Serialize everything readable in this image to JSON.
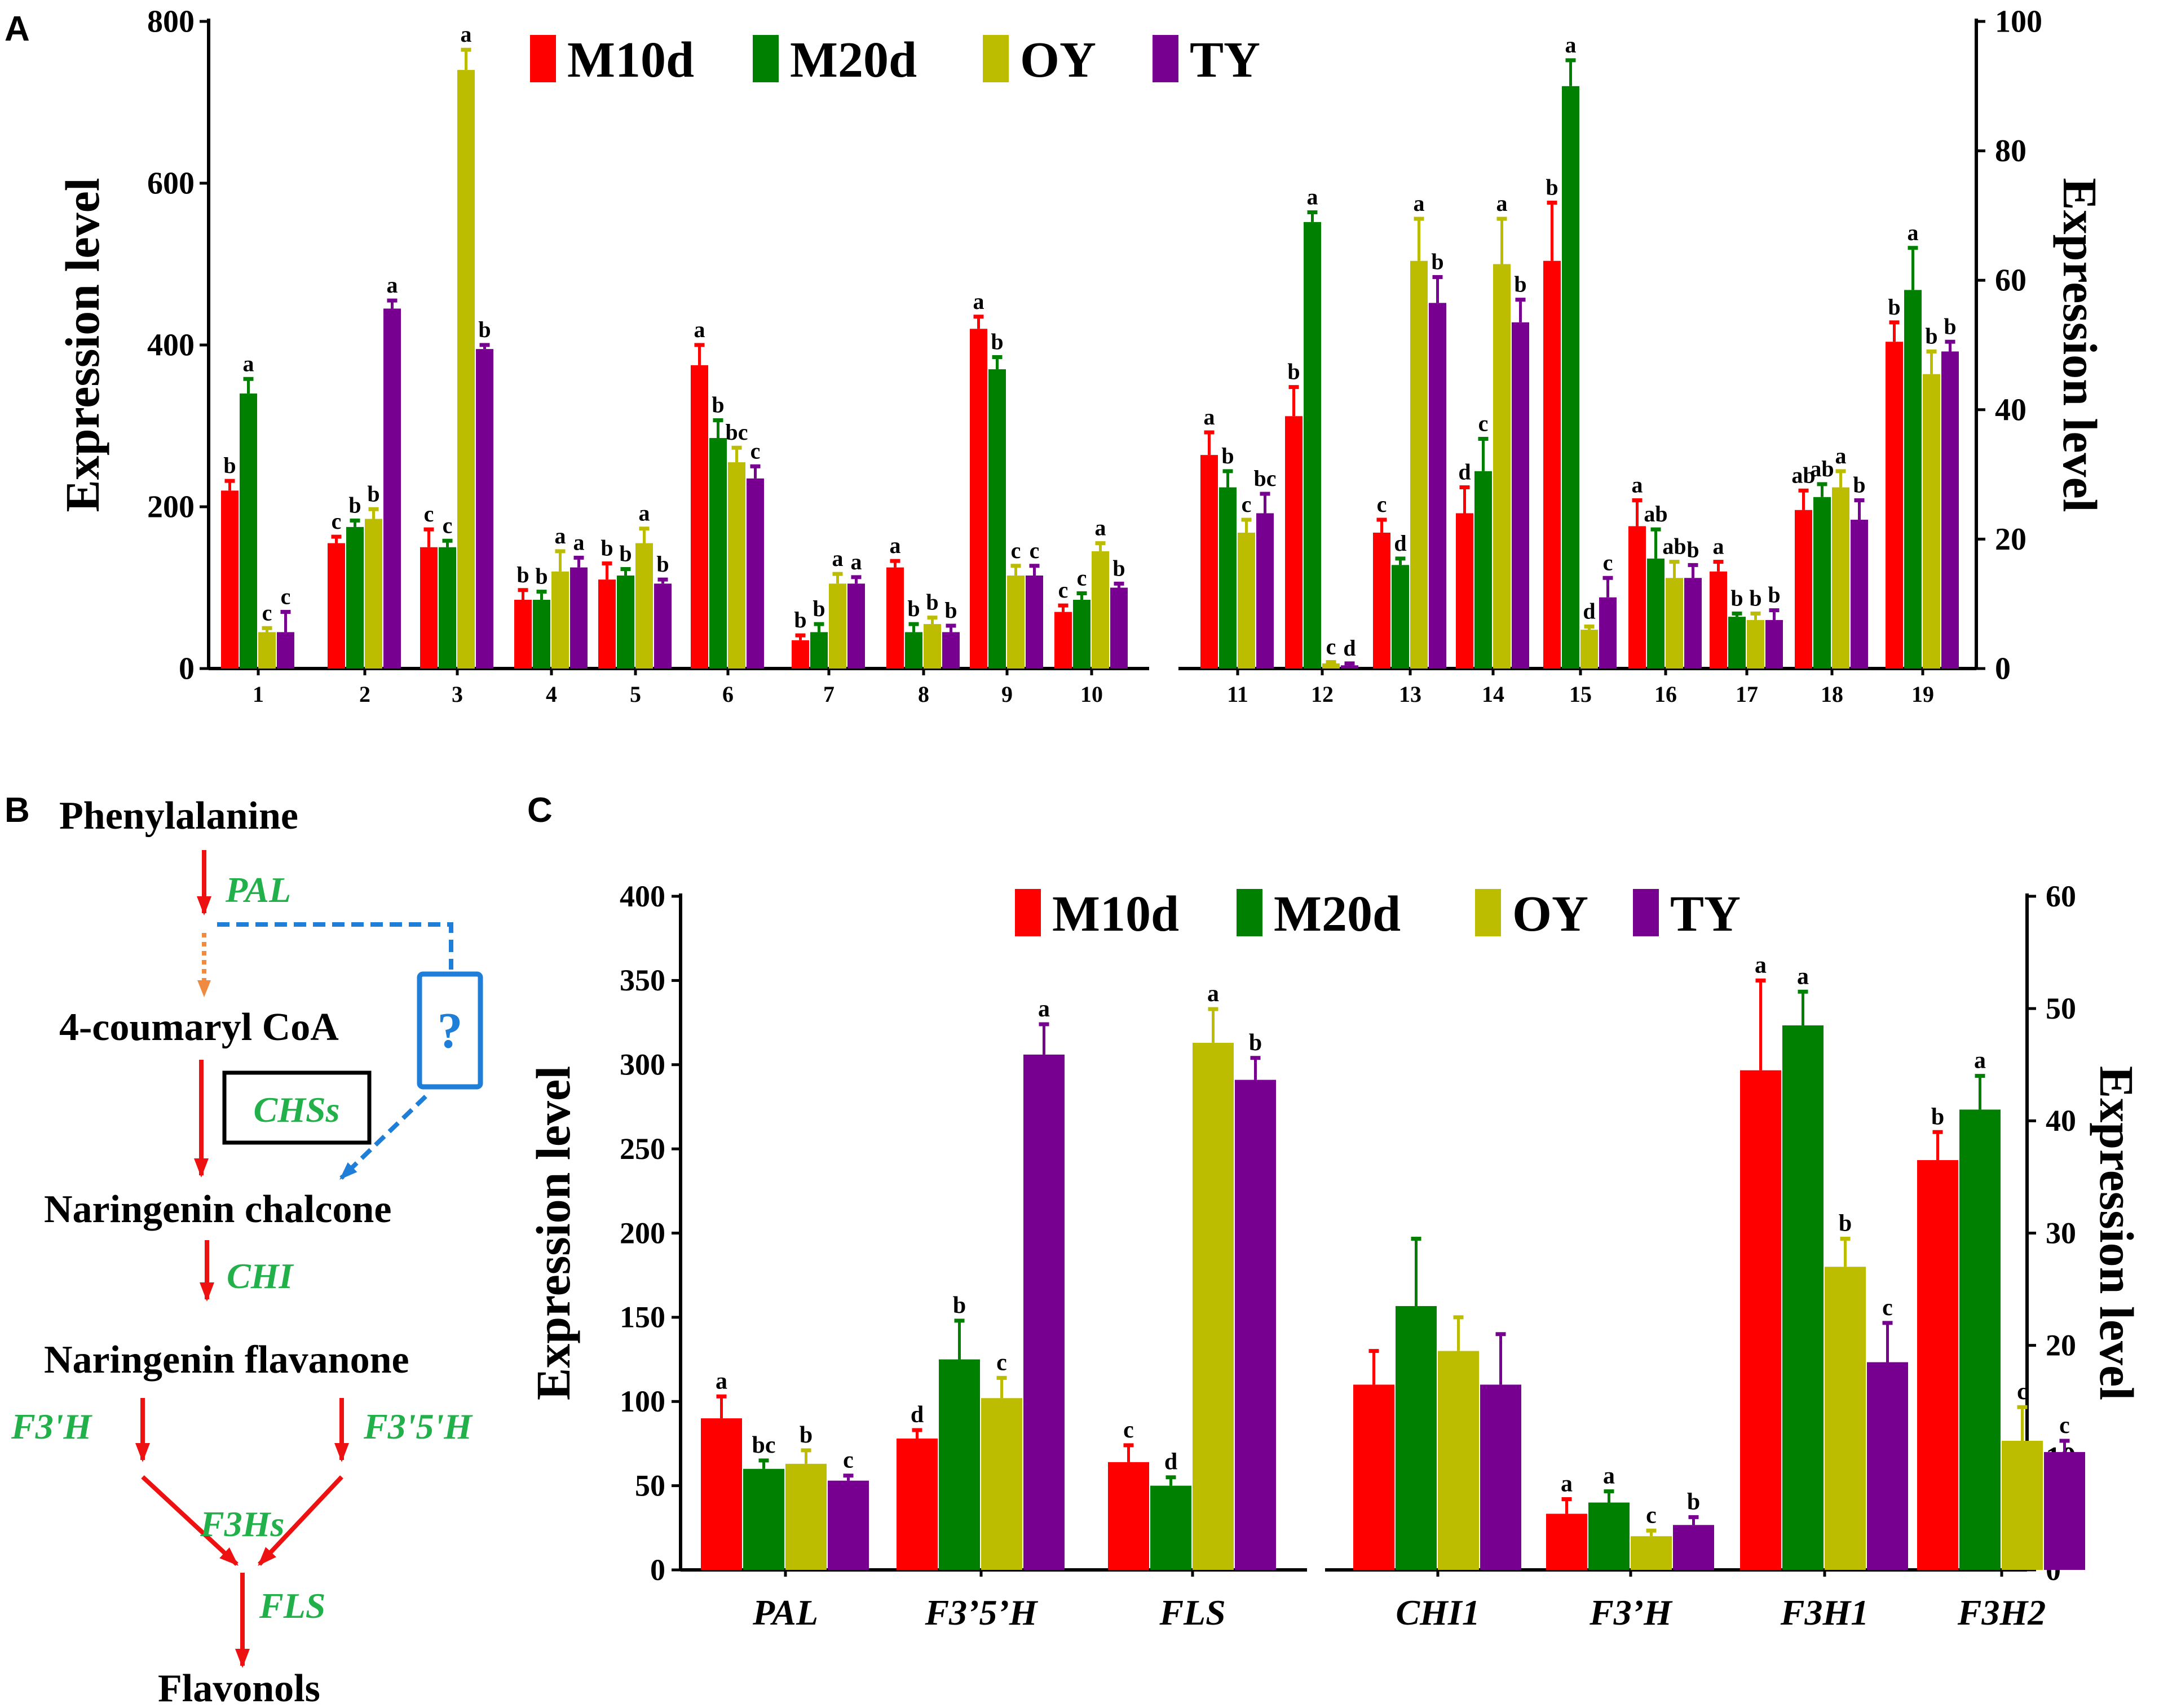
{
  "figure": {
    "panel_a_label": "A",
    "panel_b_label": "B",
    "panel_c_label": "C"
  },
  "colors": {
    "M10d": "#ff0000",
    "M20d": "#008000",
    "OY": "#bcbc00",
    "TY": "#780090",
    "pathway_arrow": "#ee1111",
    "pathway_dotted": "#f08a40",
    "pathway_blue": "#1e7ed8",
    "enzyme_text": "#22b04a"
  },
  "chart_data": [
    {
      "id": "A",
      "type": "bar",
      "title": "",
      "ylabel_left": "Expression level",
      "ylabel_right": "Expression level",
      "legend": [
        "M10d",
        "M20d",
        "OY",
        "TY"
      ],
      "left": {
        "ylim": [
          0,
          800
        ],
        "yticks": [
          "0",
          "200",
          "400",
          "600",
          "800"
        ],
        "categories": [
          "1",
          "2",
          "3",
          "4",
          "5",
          "6",
          "7",
          "8",
          "9",
          "10"
        ],
        "series": [
          {
            "name": "M10d",
            "values": [
              220,
              155,
              150,
              85,
              110,
              375,
              35,
              125,
              420,
              70
            ],
            "errors": [
              12,
              8,
              22,
              12,
              20,
              25,
              6,
              8,
              15,
              8
            ],
            "letters": [
              "b",
              "c",
              "c",
              "b",
              "b",
              "a",
              "b",
              "a",
              "a",
              "c"
            ]
          },
          {
            "name": "M20d",
            "values": [
              340,
              175,
              150,
              85,
              115,
              285,
              45,
              45,
              370,
              85
            ],
            "errors": [
              18,
              8,
              8,
              10,
              8,
              22,
              10,
              10,
              15,
              8
            ],
            "letters": [
              "a",
              "b",
              "c",
              "b",
              "b",
              "b",
              "b",
              "b",
              "b",
              "c"
            ]
          },
          {
            "name": "OY",
            "values": [
              45,
              185,
              740,
              120,
              155,
              255,
              105,
              55,
              115,
              145
            ],
            "errors": [
              5,
              12,
              25,
              25,
              18,
              18,
              12,
              8,
              12,
              10
            ],
            "letters": [
              "c",
              "b",
              "a",
              "a",
              "a",
              "bc",
              "a",
              "b",
              "c",
              "a"
            ]
          },
          {
            "name": "TY",
            "values": [
              45,
              445,
              395,
              125,
              105,
              235,
              105,
              45,
              115,
              100
            ],
            "errors": [
              25,
              10,
              5,
              12,
              5,
              15,
              8,
              8,
              12,
              5
            ],
            "letters": [
              "c",
              "a",
              "b",
              "a",
              "b",
              "c",
              "a",
              "b",
              "c",
              "b"
            ]
          }
        ]
      },
      "right": {
        "ylim": [
          0,
          100
        ],
        "yticks": [
          "0",
          "20",
          "40",
          "60",
          "80",
          "100"
        ],
        "categories": [
          "11",
          "12",
          "13",
          "14",
          "15",
          "16",
          "17",
          "18",
          "19"
        ],
        "series": [
          {
            "name": "M10d",
            "values": [
              33,
              39,
              21,
              24,
              63,
              22,
              15,
              24.5,
              50.5
            ],
            "errors": [
              3.5,
              4.5,
              2,
              4,
              9,
              4,
              1.5,
              3,
              3
            ],
            "letters": [
              "a",
              "b",
              "c",
              "d",
              "b",
              "a",
              "a",
              "ab",
              "b"
            ]
          },
          {
            "name": "M20d",
            "values": [
              28,
              69,
              16,
              30.5,
              90,
              17,
              8,
              26.5,
              58.5
            ],
            "errors": [
              2.5,
              1.5,
              1,
              5,
              4,
              4.5,
              0.5,
              2,
              6.5
            ],
            "letters": [
              "b",
              "a",
              "d",
              "c",
              "a",
              "ab",
              "b",
              "ab",
              "a"
            ]
          },
          {
            "name": "OY",
            "values": [
              21,
              0.8,
              63,
              62.5,
              6,
              14,
              7.5,
              28,
              45.5
            ],
            "errors": [
              2,
              0.2,
              6.5,
              7,
              0.5,
              2.5,
              1,
              2.5,
              3.5
            ],
            "letters": [
              "c",
              "c",
              "a",
              "a",
              "d",
              "ab",
              "b",
              "a",
              "b"
            ]
          },
          {
            "name": "TY",
            "values": [
              24,
              0.5,
              56.5,
              53.5,
              11,
              14,
              7.5,
              23,
              49
            ],
            "errors": [
              3,
              0.3,
              4,
              3.5,
              3,
              2,
              1.5,
              3,
              1.5
            ],
            "letters": [
              "bc",
              "d",
              "b",
              "b",
              "c",
              "b",
              "b",
              "b",
              "b"
            ]
          }
        ]
      }
    },
    {
      "id": "C",
      "type": "bar",
      "title": "",
      "ylabel_left": "Expression level",
      "ylabel_right": "Expression level",
      "legend": [
        "M10d",
        "M20d",
        "OY",
        "TY"
      ],
      "left": {
        "ylim": [
          0,
          400
        ],
        "yticks": [
          "0",
          "50",
          "100",
          "150",
          "200",
          "250",
          "300",
          "350",
          "400"
        ],
        "categories": [
          "PAL",
          "F3’5’H",
          "FLS"
        ],
        "series": [
          {
            "name": "M10d",
            "values": [
              90,
              78,
              64
            ],
            "errors": [
              13,
              5,
              10
            ],
            "letters": [
              "a",
              "d",
              "c"
            ]
          },
          {
            "name": "M20d",
            "values": [
              60,
              125,
              50
            ],
            "errors": [
              5,
              23,
              5
            ],
            "letters": [
              "bc",
              "b",
              "d"
            ]
          },
          {
            "name": "OY",
            "values": [
              63,
              102,
              313
            ],
            "errors": [
              8,
              12,
              20
            ],
            "letters": [
              "b",
              "c",
              "a"
            ]
          },
          {
            "name": "TY",
            "values": [
              53,
              306,
              291
            ],
            "errors": [
              3,
              18,
              13
            ],
            "letters": [
              "c",
              "a",
              "b"
            ]
          }
        ]
      },
      "right": {
        "ylim": [
          0,
          60
        ],
        "yticks": [
          "0",
          "10",
          "20",
          "30",
          "40",
          "50",
          "60"
        ],
        "categories": [
          "CHI1",
          "F3’H",
          "F3H1",
          "F3H2"
        ],
        "series": [
          {
            "name": "M10d",
            "values": [
              16.5,
              5,
              44.5,
              36.5
            ],
            "errors": [
              3,
              1.3,
              8,
              2.5
            ],
            "letters": [
              "",
              "a",
              "a",
              "b"
            ]
          },
          {
            "name": "M20d",
            "values": [
              23.5,
              6,
              48.5,
              41
            ],
            "errors": [
              6,
              1,
              3,
              3
            ],
            "letters": [
              "",
              "a",
              "a",
              "a"
            ]
          },
          {
            "name": "OY",
            "values": [
              19.5,
              3,
              27,
              11.5
            ],
            "errors": [
              3,
              0.5,
              2.5,
              3
            ],
            "letters": [
              "",
              "c",
              "b",
              "c"
            ]
          },
          {
            "name": "TY",
            "values": [
              16.5,
              4,
              18.5,
              10.5
            ],
            "errors": [
              4.5,
              0.7,
              3.5,
              1
            ],
            "letters": [
              "",
              "b",
              "c",
              "c"
            ]
          }
        ]
      }
    }
  ],
  "pathway": {
    "phenylalanine": "Phenylalanine",
    "pal": "PAL",
    "coumaryl": "4-coumaryl CoA",
    "question": "?",
    "chss": "CHSs",
    "naringenin_chalcone": "Naringenin chalcone",
    "chi": "CHI",
    "naringenin_flavanone": "Naringenin flavanone",
    "f3h_prime": "F3'H",
    "f35h_prime": "F3'5'H",
    "f3hs": "F3Hs",
    "fls": "FLS",
    "flavonols": "Flavonols"
  }
}
